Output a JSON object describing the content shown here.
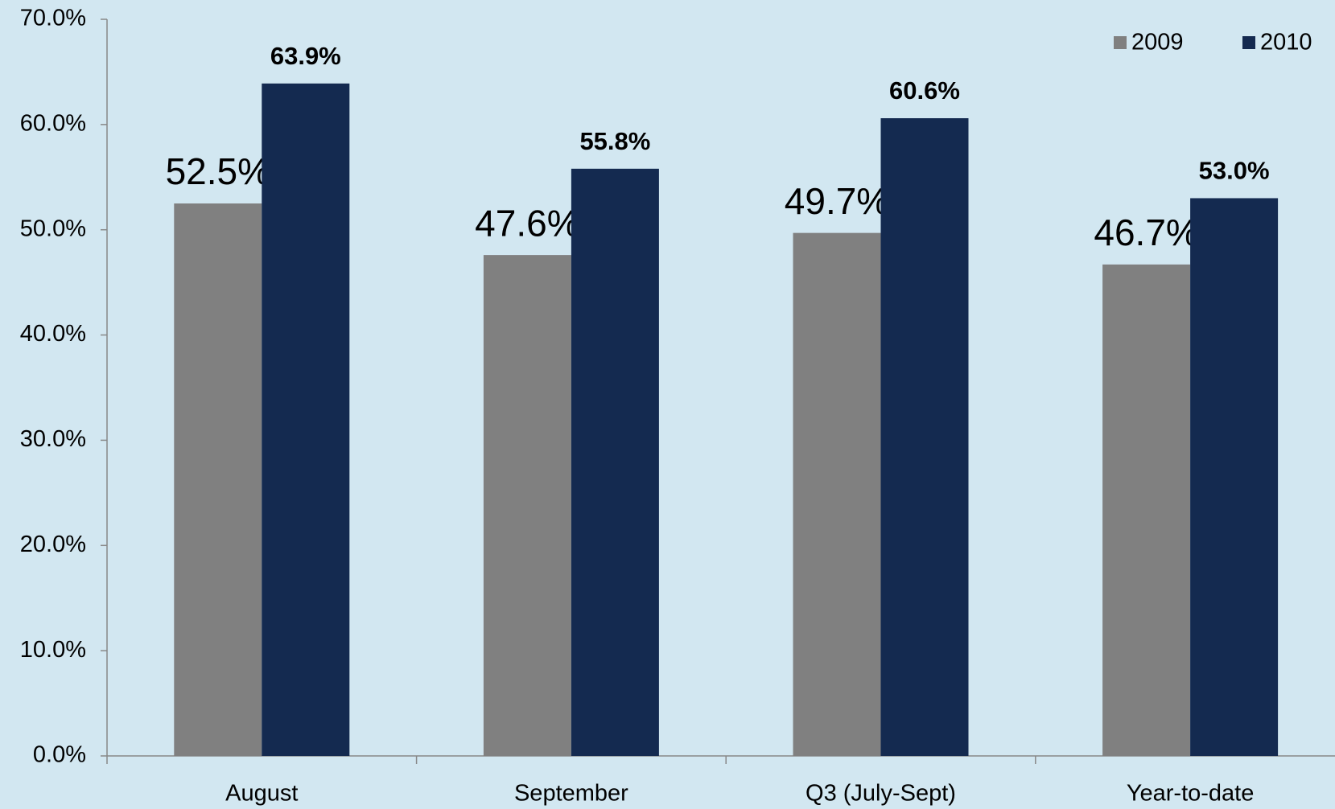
{
  "chart_data": {
    "type": "bar",
    "categories": [
      "August",
      "September",
      "Q3 (July-Sept)",
      "Year-to-date"
    ],
    "series": [
      {
        "name": "2009",
        "color": "#808080",
        "values": [
          52.5,
          47.6,
          49.7,
          46.7
        ],
        "value_labels": [
          "52.5%",
          "47.6%",
          "49.7%",
          "46.7%"
        ]
      },
      {
        "name": "2010",
        "color": "#142a50",
        "values": [
          63.9,
          55.8,
          60.6,
          53.0
        ],
        "value_labels": [
          "63.9%",
          "55.8%",
          "60.6%",
          "53.0%"
        ]
      }
    ],
    "ylim": [
      0,
      70
    ],
    "yticks": [
      {
        "value": 0,
        "label": "0.0%"
      },
      {
        "value": 10,
        "label": "10.0%"
      },
      {
        "value": 20,
        "label": "20.0%"
      },
      {
        "value": 30,
        "label": "30.0%"
      },
      {
        "value": 40,
        "label": "40.0%"
      },
      {
        "value": 50,
        "label": "50.0%"
      },
      {
        "value": 60,
        "label": "60.0%"
      },
      {
        "value": 70,
        "label": "70.0%"
      }
    ],
    "grid": false,
    "legend": "top-right"
  }
}
